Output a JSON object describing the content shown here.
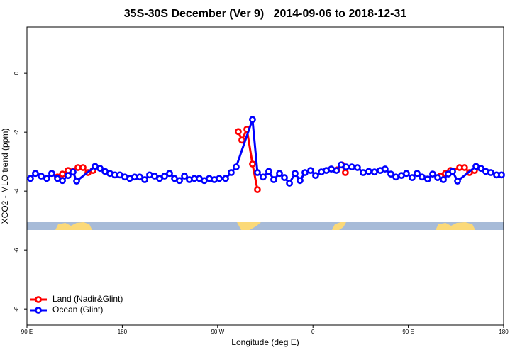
{
  "chart_data": {
    "type": "line",
    "title": "35S-30S December (Ver 9)   2014-09-06 to 2018-12-31",
    "x_label": "Longitude (deg E)",
    "y_label": "XCO2 - MLO trend (ppm)",
    "xlim": [
      90,
      540
    ],
    "ylim": [
      -8.55,
      1.57
    ],
    "xticks": [
      {
        "value": 90,
        "label": "90 E"
      },
      {
        "value": 180,
        "label": "180"
      },
      {
        "value": 270,
        "label": "90 W"
      },
      {
        "value": 360,
        "label": "0"
      },
      {
        "value": 450,
        "label": "90 E"
      },
      {
        "value": 540,
        "label": "180"
      }
    ],
    "yticks": [
      0,
      -2,
      -4,
      -6,
      -8
    ],
    "legend": "bottomleft",
    "series": [
      {
        "name": "Land (Nadir&Glint)",
        "color": "#ff0000",
        "x": [
          118.8,
          123.5,
          128.8,
          138.2,
          142.9,
          147.6,
          152.3,
          null,
          289.5,
          292.9,
          297.6,
          302.9,
          307.6,
          null,
          382.6,
          387.3,
          390.6,
          null,
          480.4,
          485.1,
          489.8,
          498.5,
          503.1,
          507.8,
          512.5
        ],
        "values": [
          -3.52,
          -3.42,
          -3.3,
          -3.2,
          -3.2,
          -3.37,
          -3.3,
          null,
          -1.98,
          -2.27,
          -1.9,
          -3.08,
          -3.95,
          null,
          -3.28,
          -3.11,
          -3.37,
          null,
          -3.49,
          -3.4,
          -3.3,
          -3.2,
          -3.2,
          -3.37,
          -3.3
        ]
      },
      {
        "name": "Ocean (Glint)",
        "color": "#0000ff",
        "x": [
          93.3,
          98.0,
          103.4,
          108.7,
          113.4,
          118.8,
          123.5,
          128.8,
          133.5,
          136.9,
          154.3,
          159.0,
          163.7,
          168.3,
          173.0,
          177.7,
          182.4,
          187.1,
          191.8,
          196.5,
          201.2,
          205.8,
          210.5,
          215.2,
          219.9,
          224.6,
          229.3,
          234.0,
          238.7,
          243.3,
          248.0,
          252.7,
          257.4,
          262.1,
          266.8,
          271.5,
          277.5,
          282.8,
          287.5,
          302.9,
          307.6,
          313.0,
          318.3,
          323.0,
          328.4,
          333.1,
          337.8,
          343.1,
          347.8,
          352.5,
          357.8,
          362.5,
          367.9,
          372.6,
          377.3,
          382.0,
          386.6,
          391.3,
          396.7,
          402.0,
          407.4,
          412.7,
          418.1,
          423.5,
          428.1,
          433.5,
          438.2,
          443.5,
          448.2,
          453.6,
          458.3,
          463.0,
          468.3,
          473.0,
          477.7,
          483.1,
          487.7,
          491.8,
          496.5,
          513.9,
          518.6,
          523.2,
          527.9,
          533.3,
          538.0
        ],
        "values": [
          -3.57,
          -3.4,
          -3.49,
          -3.57,
          -3.4,
          -3.57,
          -3.64,
          -3.47,
          -3.35,
          -3.66,
          -3.16,
          -3.23,
          -3.33,
          -3.4,
          -3.45,
          -3.45,
          -3.52,
          -3.57,
          -3.52,
          -3.52,
          -3.61,
          -3.45,
          -3.49,
          -3.57,
          -3.49,
          -3.4,
          -3.57,
          -3.64,
          -3.49,
          -3.61,
          -3.57,
          -3.57,
          -3.64,
          -3.57,
          -3.61,
          -3.57,
          -3.57,
          -3.37,
          -3.18,
          -1.57,
          -3.37,
          -3.52,
          -3.33,
          -3.61,
          -3.4,
          -3.54,
          -3.73,
          -3.4,
          -3.64,
          -3.37,
          -3.3,
          -3.47,
          -3.35,
          -3.3,
          -3.25,
          -3.3,
          -3.11,
          -3.18,
          -3.18,
          -3.2,
          -3.37,
          -3.33,
          -3.35,
          -3.3,
          -3.25,
          -3.42,
          -3.52,
          -3.47,
          -3.4,
          -3.54,
          -3.4,
          -3.52,
          -3.59,
          -3.42,
          -3.54,
          -3.61,
          -3.42,
          -3.33,
          -3.66,
          -3.16,
          -3.23,
          -3.33,
          -3.37,
          -3.45,
          -3.45
        ]
      }
    ]
  }
}
